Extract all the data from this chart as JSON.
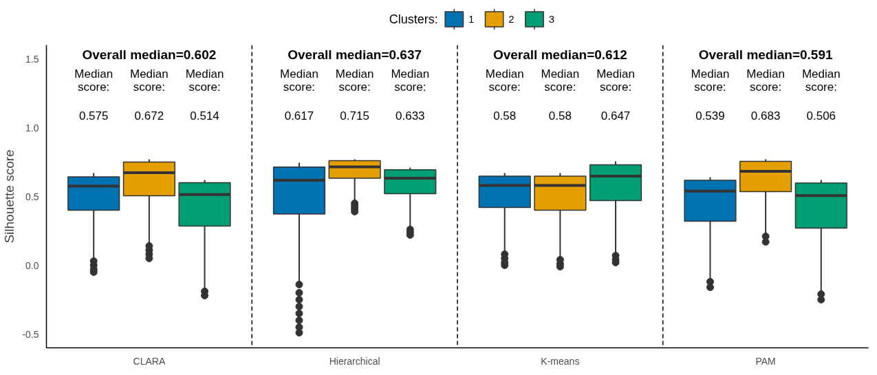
{
  "chart_data": {
    "type": "box",
    "ylabel": "Silhouette score",
    "legend_title": "Clusters:",
    "legend": "top",
    "grid": false,
    "categories": [
      "CLARA",
      "Hierarchical",
      "K-means",
      "PAM"
    ],
    "ylim": [
      -0.6,
      1.6
    ],
    "yticks": [
      -0.5,
      {
        "value": 0,
        "label": "0.0"
      },
      0.5,
      {
        "value": 1,
        "label": "1.0"
      },
      1.5
    ],
    "series": [
      {
        "name": "1",
        "color": "#0072b2",
        "boxes": [
          {
            "low": 0.05,
            "q1": 0.4,
            "median": 0.575,
            "q3": 0.643,
            "high": 0.67,
            "outliers": [
              0.03,
              0.0,
              -0.03,
              -0.05
            ]
          },
          {
            "low": -0.12,
            "q1": 0.372,
            "median": 0.617,
            "q3": 0.714,
            "high": 0.745,
            "outliers": [
              -0.14,
              -0.2,
              -0.25,
              -0.3,
              -0.35,
              -0.4,
              -0.45,
              -0.49
            ]
          },
          {
            "low": 0.1,
            "q1": 0.42,
            "median": 0.58,
            "q3": 0.648,
            "high": 0.67,
            "outliers": [
              0.08,
              0.05,
              0.02,
              0.0
            ]
          },
          {
            "low": -0.1,
            "q1": 0.32,
            "median": 0.539,
            "q3": 0.617,
            "high": 0.64,
            "outliers": [
              -0.12,
              -0.16
            ]
          }
        ]
      },
      {
        "name": "2",
        "color": "#e69f00",
        "boxes": [
          {
            "low": 0.16,
            "q1": 0.505,
            "median": 0.672,
            "q3": 0.75,
            "high": 0.77,
            "outliers": [
              0.14,
              0.11,
              0.08,
              0.05
            ]
          },
          {
            "low": 0.47,
            "q1": 0.633,
            "median": 0.715,
            "q3": 0.76,
            "high": 0.77,
            "outliers": [
              0.45,
              0.43,
              0.41,
              0.39
            ]
          },
          {
            "low": 0.065,
            "q1": 0.4,
            "median": 0.58,
            "q3": 0.648,
            "high": 0.67,
            "outliers": [
              0.04,
              0.01,
              -0.01
            ]
          },
          {
            "low": 0.23,
            "q1": 0.535,
            "median": 0.683,
            "q3": 0.755,
            "high": 0.77,
            "outliers": [
              0.21,
              0.17
            ]
          }
        ]
      },
      {
        "name": "3",
        "color": "#009e73",
        "boxes": [
          {
            "low": -0.17,
            "q1": 0.285,
            "median": 0.514,
            "q3": 0.6,
            "high": 0.62,
            "outliers": [
              -0.19,
              -0.22
            ]
          },
          {
            "low": 0.28,
            "q1": 0.52,
            "median": 0.633,
            "q3": 0.694,
            "high": 0.71,
            "outliers": [
              0.26,
              0.24,
              0.22
            ]
          },
          {
            "low": 0.09,
            "q1": 0.47,
            "median": 0.647,
            "q3": 0.73,
            "high": 0.755,
            "outliers": [
              0.07,
              0.04,
              0.02
            ]
          },
          {
            "low": -0.19,
            "q1": 0.27,
            "median": 0.506,
            "q3": 0.597,
            "high": 0.62,
            "outliers": [
              -0.21,
              -0.25
            ]
          }
        ]
      }
    ],
    "annotations": [
      "Overall median=0.602",
      "Overall median=0.637",
      "Overall median=0.612",
      "Overall median=0.591",
      "Median score: 0.575",
      "Median score: 0.617",
      "Median score: 0.58",
      "Median score: 0.539",
      "Median score: 0.672",
      "Median score: 0.715",
      "Median score: 0.58",
      "Median score: 0.683",
      "Median score: 0.514",
      "Median score: 0.633",
      "Median score: 0.647",
      "Median score: 0.506"
    ]
  }
}
